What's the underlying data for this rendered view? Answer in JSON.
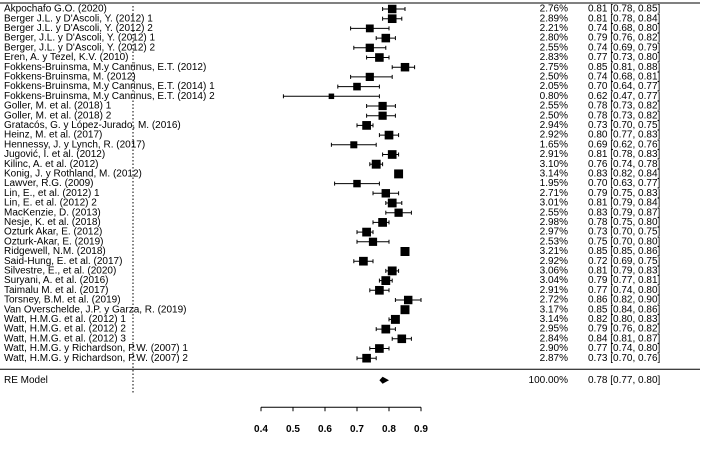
{
  "chart_data": {
    "type": "forest",
    "title": "",
    "xlabel": "",
    "ylabel": "",
    "xlim": [
      0.4,
      0.9
    ],
    "x_ticks": [
      "0.4",
      "0.5",
      "0.6",
      "0.7",
      "0.8",
      "0.9"
    ],
    "reference_line": 0.0,
    "studies": [
      {
        "label": "Akpochafo G.O. (2020)",
        "weight": "2.76%",
        "est": 0.81,
        "lo": 0.78,
        "hi": 0.85,
        "ci": "0.81 [0.78, 0.85]"
      },
      {
        "label": "Berger J.L. y D'Ascoli, Y. (2012) 1",
        "weight": "2.89%",
        "est": 0.81,
        "lo": 0.78,
        "hi": 0.84,
        "ci": "0.81 [0.78, 0.84]"
      },
      {
        "label": "Berger J.L. y D'Ascoli, Y. (2012) 2",
        "weight": "2.21%",
        "est": 0.74,
        "lo": 0.68,
        "hi": 0.8,
        "ci": "0.74 [0.68, 0.80]"
      },
      {
        "label": "Berger, J.L. y D'Ascoli, Y. (2012) 1",
        "weight": "2.80%",
        "est": 0.79,
        "lo": 0.76,
        "hi": 0.82,
        "ci": "0.79 [0.76, 0.82]"
      },
      {
        "label": "Berger, J.L. y D'Ascoli, Y. (2012) 2",
        "weight": "2.55%",
        "est": 0.74,
        "lo": 0.69,
        "hi": 0.79,
        "ci": "0.74 [0.69, 0.79]"
      },
      {
        "label": "Eren, A. y Tezel, K.V. (2010)",
        "weight": "2.83%",
        "est": 0.77,
        "lo": 0.73,
        "hi": 0.8,
        "ci": "0.77 [0.73, 0.80]"
      },
      {
        "label": "Fokkens-Bruinsma, M.y Canrinus, E.T. (2012)",
        "weight": "2.75%",
        "est": 0.85,
        "lo": 0.81,
        "hi": 0.88,
        "ci": "0.85 [0.81, 0.88]"
      },
      {
        "label": "Fokkens-Bruinsma, M. (2012)",
        "weight": "2.50%",
        "est": 0.74,
        "lo": 0.68,
        "hi": 0.81,
        "ci": "0.74 [0.68, 0.81]"
      },
      {
        "label": "Fokkens-Bruinsma, M.y Canrinus, E.T. (2014) 1",
        "weight": "2.05%",
        "est": 0.7,
        "lo": 0.64,
        "hi": 0.77,
        "ci": "0.70 [0.64, 0.77]"
      },
      {
        "label": "Fokkens-Bruinsma, M.y Canrinus, E.T. (2014) 2",
        "weight": "0.80%",
        "est": 0.62,
        "lo": 0.47,
        "hi": 0.77,
        "ci": "0.62 [0.47, 0.77]"
      },
      {
        "label": "Goller, M. et al. (2018) 1",
        "weight": "2.55%",
        "est": 0.78,
        "lo": 0.73,
        "hi": 0.82,
        "ci": "0.78 [0.73, 0.82]"
      },
      {
        "label": "Goller, M. et al. (2018) 2",
        "weight": "2.50%",
        "est": 0.78,
        "lo": 0.73,
        "hi": 0.82,
        "ci": "0.78 [0.73, 0.82]"
      },
      {
        "label": "Gratacós, G. y López-Jurado, M. (2016)",
        "weight": "2.94%",
        "est": 0.73,
        "lo": 0.7,
        "hi": 0.75,
        "ci": "0.73 [0.70, 0.75]"
      },
      {
        "label": "Heinz, M. et al. (2017)",
        "weight": "2.92%",
        "est": 0.8,
        "lo": 0.77,
        "hi": 0.83,
        "ci": "0.80 [0.77, 0.83]"
      },
      {
        "label": "Hennessy, J. y Lynch, R. (2017)",
        "weight": "1.65%",
        "est": 0.69,
        "lo": 0.62,
        "hi": 0.76,
        "ci": "0.69 [0.62, 0.76]"
      },
      {
        "label": "Jugović, I. et al. (2012)",
        "weight": "2.91%",
        "est": 0.81,
        "lo": 0.78,
        "hi": 0.83,
        "ci": "0.81 [0.78, 0.83]"
      },
      {
        "label": "Kilinc, A. et al. (2012)",
        "weight": "3.10%",
        "est": 0.76,
        "lo": 0.74,
        "hi": 0.78,
        "ci": "0.76 [0.74, 0.78]"
      },
      {
        "label": "Konig, J. y Rothland, M. (2012)",
        "weight": "3.14%",
        "est": 0.83,
        "lo": 0.82,
        "hi": 0.84,
        "ci": "0.83 [0.82, 0.84]"
      },
      {
        "label": "Lawver, R.G. (2009)",
        "weight": "1.95%",
        "est": 0.7,
        "lo": 0.63,
        "hi": 0.77,
        "ci": "0.70 [0.63, 0.77]"
      },
      {
        "label": "Lin, E., et al. (2012) 1",
        "weight": "2.71%",
        "est": 0.79,
        "lo": 0.75,
        "hi": 0.83,
        "ci": "0.79 [0.75, 0.83]"
      },
      {
        "label": "Lin, E. et al. (2012) 2",
        "weight": "3.01%",
        "est": 0.81,
        "lo": 0.79,
        "hi": 0.84,
        "ci": "0.81 [0.79, 0.84]"
      },
      {
        "label": "MacKenzie, D. (2013)",
        "weight": "2.55%",
        "est": 0.83,
        "lo": 0.79,
        "hi": 0.87,
        "ci": "0.83 [0.79, 0.87]"
      },
      {
        "label": "Nesje, K. et al. (2018)",
        "weight": "2.98%",
        "est": 0.78,
        "lo": 0.75,
        "hi": 0.8,
        "ci": "0.78 [0.75, 0.80]"
      },
      {
        "label": "Ozturk Akar, E. (2012)",
        "weight": "2.97%",
        "est": 0.73,
        "lo": 0.7,
        "hi": 0.75,
        "ci": "0.73 [0.70, 0.75]"
      },
      {
        "label": "Ozturk-Akar, E. (2019)",
        "weight": "2.53%",
        "est": 0.75,
        "lo": 0.7,
        "hi": 0.8,
        "ci": "0.75 [0.70, 0.80]"
      },
      {
        "label": "Ridgewell, N.M. (2018)",
        "weight": "3.21%",
        "est": 0.85,
        "lo": 0.85,
        "hi": 0.86,
        "ci": "0.85 [0.85, 0.86]"
      },
      {
        "label": "Said-Hung, E. et al. (2017)",
        "weight": "2.92%",
        "est": 0.72,
        "lo": 0.69,
        "hi": 0.75,
        "ci": "0.72 [0.69, 0.75]"
      },
      {
        "label": "Silvestre, E., et al. (2020)",
        "weight": "3.06%",
        "est": 0.81,
        "lo": 0.79,
        "hi": 0.83,
        "ci": "0.81 [0.79, 0.83]"
      },
      {
        "label": "Suryani, A. et al. (2016)",
        "weight": "3.04%",
        "est": 0.79,
        "lo": 0.77,
        "hi": 0.81,
        "ci": "0.79 [0.77, 0.81]"
      },
      {
        "label": "Taimalu M. et al. (2017)",
        "weight": "2.91%",
        "est": 0.77,
        "lo": 0.74,
        "hi": 0.8,
        "ci": "0.77 [0.74, 0.80]"
      },
      {
        "label": "Torsney, B.M. et al. (2019)",
        "weight": "2.72%",
        "est": 0.86,
        "lo": 0.82,
        "hi": 0.9,
        "ci": "0.86 [0.82, 0.90]"
      },
      {
        "label": "Van Overschelde, J.P. y Garza, R. (2019)",
        "weight": "3.17%",
        "est": 0.85,
        "lo": 0.84,
        "hi": 0.86,
        "ci": "0.85 [0.84, 0.86]"
      },
      {
        "label": "Watt, H.M.G. et al. (2012) 1",
        "weight": "3.14%",
        "est": 0.82,
        "lo": 0.8,
        "hi": 0.83,
        "ci": "0.82 [0.80, 0.83]"
      },
      {
        "label": "Watt, H.M.G. et al. (2012) 2",
        "weight": "2.95%",
        "est": 0.79,
        "lo": 0.76,
        "hi": 0.82,
        "ci": "0.79 [0.76, 0.82]"
      },
      {
        "label": "Watt, H.M.G. et al. (2012) 3",
        "weight": "2.84%",
        "est": 0.84,
        "lo": 0.81,
        "hi": 0.87,
        "ci": "0.84 [0.81, 0.87]"
      },
      {
        "label": "Watt, H.M.G. y Richardson, P.W. (2007) 1",
        "weight": "2.90%",
        "est": 0.77,
        "lo": 0.74,
        "hi": 0.8,
        "ci": "0.77 [0.74, 0.80]"
      },
      {
        "label": "Watt, H.M.G. y Richardson, P.W. (2007) 2",
        "weight": "2.87%",
        "est": 0.73,
        "lo": 0.7,
        "hi": 0.76,
        "ci": "0.73 [0.70, 0.76]"
      }
    ],
    "summary": {
      "label": "RE Model",
      "weight": "100.00%",
      "est": 0.78,
      "lo": 0.77,
      "hi": 0.8,
      "ci": "0.78 [0.77, 0.80]"
    }
  }
}
